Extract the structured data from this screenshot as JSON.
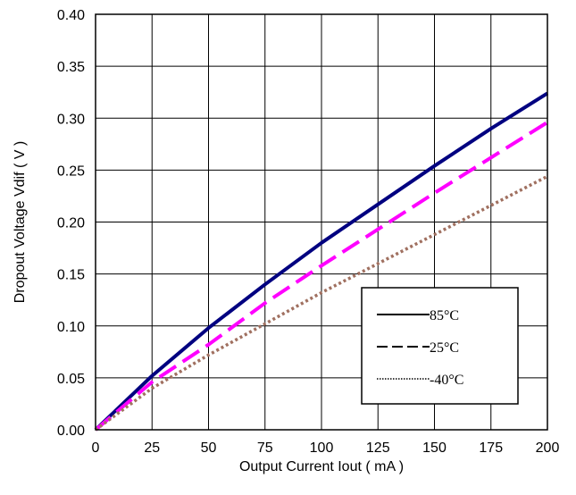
{
  "chart_data": {
    "type": "line",
    "xlabel": "Output Current Iout ( mA )",
    "ylabel": "Dropout Voltage Vdif ( V )",
    "xlim": [
      0,
      200
    ],
    "ylim": [
      0,
      0.4
    ],
    "xticks": [
      "0",
      "25",
      "50",
      "75",
      "100",
      "125",
      "150",
      "175",
      "200"
    ],
    "yticks": [
      "0.00",
      "0.05",
      "0.10",
      "0.15",
      "0.20",
      "0.25",
      "0.30",
      "0.35",
      "0.40"
    ],
    "grid": true,
    "legend_position": "bottom-right",
    "series": [
      {
        "name": "85°C",
        "color": "#000080",
        "style": "solid",
        "x": [
          0,
          25,
          50,
          75,
          100,
          125,
          150,
          175,
          200
        ],
        "y": [
          0,
          0.052,
          0.098,
          0.14,
          0.18,
          0.217,
          0.254,
          0.29,
          0.324
        ]
      },
      {
        "name": "25°C",
        "color": "#ff00ff",
        "style": "dashed",
        "x": [
          0,
          25,
          50,
          75,
          100,
          125,
          150,
          175,
          200
        ],
        "y": [
          0,
          0.046,
          0.082,
          0.122,
          0.158,
          0.193,
          0.228,
          0.262,
          0.296
        ]
      },
      {
        "name": "-40°C",
        "color": "#a07060",
        "style": "dotted",
        "x": [
          0,
          25,
          50,
          75,
          100,
          125,
          150,
          175,
          200
        ],
        "y": [
          0,
          0.04,
          0.072,
          0.102,
          0.132,
          0.16,
          0.188,
          0.216,
          0.244
        ]
      }
    ]
  }
}
